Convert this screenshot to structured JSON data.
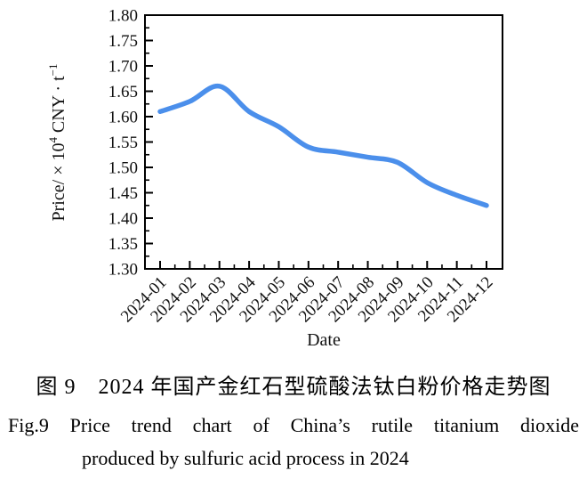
{
  "chart_data": {
    "type": "line",
    "x": [
      "2024-01",
      "2024-02",
      "2024-03",
      "2024-04",
      "2024-05",
      "2024-06",
      "2024-07",
      "2024-08",
      "2024-09",
      "2024-10",
      "2024-11",
      "2024-12"
    ],
    "values": [
      1.61,
      1.63,
      1.66,
      1.61,
      1.58,
      1.54,
      1.53,
      1.52,
      1.51,
      1.47,
      1.445,
      1.425
    ],
    "xlabel": "Date",
    "ylabel": "Price/ × 10⁴ CNY · t⁻¹",
    "ylabel_parts": {
      "part1": "Price/ × 10",
      "sup1": "4",
      "part2": " CNY · t",
      "sup2": "−1"
    },
    "ylim": [
      1.3,
      1.8
    ],
    "ytick_step": 0.05,
    "ytick_labels": [
      "1.80",
      "1.75",
      "1.70",
      "1.65",
      "1.60",
      "1.55",
      "1.50",
      "1.45",
      "1.40",
      "1.35",
      "1.30"
    ],
    "grid": "off",
    "legend": "none",
    "line_color": "#4B8FEB",
    "axis_color": "#000000"
  },
  "captions": {
    "chinese": "图 9　2024 年国产金红石型硫酸法钛白粉价格走势图",
    "english_line1": "Fig.9 Price trend chart of China’s rutile titanium dioxide",
    "english_line2": "produced by sulfuric acid process in 2024"
  }
}
